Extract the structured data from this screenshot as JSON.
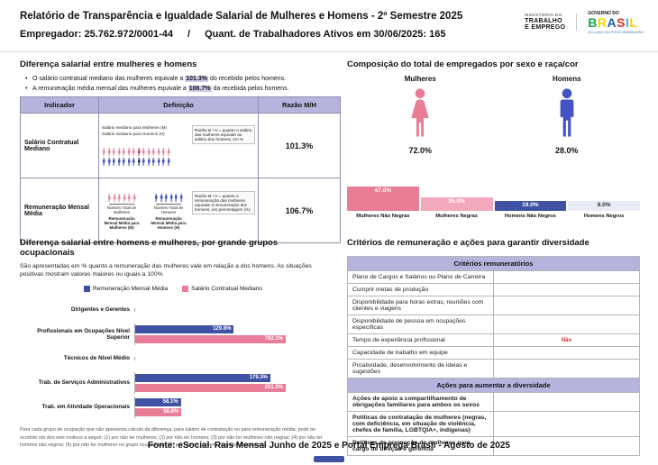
{
  "header": {
    "title": "Relatório de Transparência e Igualdade Salarial de Mulheres e Homens - 2º Semestre 2025",
    "employer": "Empregador: 25.762.972/0001-44",
    "separator": "/",
    "active_workers": "Quant. de Trabalhadores Ativos em 30/06/2025: 165",
    "ministry": {
      "line1": "MINISTÉRIO DO",
      "line2": "TRABALHO",
      "line3": "E EMPREGO"
    },
    "gov": {
      "top": "GOVERNO DO",
      "brand": "BRASIL",
      "tagline": "DO LADO DO POVO BRASILEIRO"
    }
  },
  "salary_diff": {
    "title": "Diferença salarial entre mulheres e homens",
    "bullet1": {
      "pre": "O salário contratual mediano das mulheres equivale a ",
      "value": "101.3%",
      "post": " do recebido pelos homens."
    },
    "bullet2": {
      "pre": "A remuneração média mensal das mulheres equivale a ",
      "value": "106.7%",
      "post": " da recebida pelos homens."
    },
    "table": {
      "col_indicador": "Indicador",
      "col_definicao": "Definição",
      "col_razao": "Razão M/H",
      "row1": {
        "indicator": "Salário Contratual Mediano",
        "label_a": "Salário mediano para Mulheres (M)",
        "label_b": "Salário mediano para Homens (H)",
        "note": "Razão M / H = quanto o salário das mulheres equivale ao salário dos homens, em %",
        "ratio": "101.3%"
      },
      "row2": {
        "indicator": "Remuneração Mensal Média",
        "label_a": "Número Total de Mulheres",
        "label_b": "Remuneração Mensal Média para Mulheres (M)",
        "label_c": "Número Total de Homens",
        "label_d": "Remuneração Mensal Média para Homens (H)",
        "note": "Razão M / H = quanto a remuneração das mulheres equivale à remuneração dos homens, em percentagem (%)",
        "ratio": "106.7%"
      }
    }
  },
  "composition": {
    "title": "Composição do total de empregados por sexo e raça/cor",
    "female_label": "Mulheres",
    "male_label": "Homens",
    "female_total": "72.0%",
    "male_total": "28.0%"
  },
  "occupational": {
    "title": "Diferença salarial entre homens e mulheres, por grande grupos ocupacionais",
    "subtitle": "São apresentadas em % quanto a remuneração das mulheres vale em relação a dos homens. As situações positivas mostram valores maiores ou iguais a 100%",
    "footnote": "Para cada grupo de ocupação que não apresenta cálculo da diferença, para salário de contratação ou para remuneração média, pode ter ocorrido um dos seis motivos a seguir: (1) por não ter mulheres; (2) por não ter homens; (3) por não ter mulheres não negras; (4) por não ter homens não negros; (5) por não ter mulheres no grupo ocupacional; (6) por não ter homens no grupo ocupacional."
  },
  "criteria": {
    "title": "Critérios de remuneração e ações para garantir diversidade",
    "sections": [
      {
        "header": "Critérios remuneratórios",
        "rows": [
          {
            "label": "Plano de Cargos e Salários ou Plano de Carreira"
          },
          {
            "label": "Cumprir metas de produção"
          },
          {
            "label": "Disponibilidade para horas extras, reuniões com clientes e viagens"
          },
          {
            "label": "Disponibilidade de pessoa em ocupações específicas"
          },
          {
            "label": "Tempo de experiência profissional",
            "badge": "Não"
          },
          {
            "label": "Capacidade de trabalho em equipe"
          },
          {
            "label": "Proatividade, desenvolvimento de ideias e sugestões"
          }
        ]
      },
      {
        "header": "Ações para aumentar a diversidade",
        "rows": [
          {
            "label": "Ações de apoio a compartilhamento de obrigações familiares para ambos os sexos"
          },
          {
            "label": "Políticas de contratação de mulheres (negras, com deficiência, em situação de violência, chefes de família, LGBTQIA+, indígenas)"
          },
          {
            "label": "Políticas de promoção de mulheres para cargo de direção e gerência"
          }
        ]
      }
    ]
  },
  "footer": "Fonte: eSocial. Rais Mensal Junho de 2025 e Portal Emprega Brasil - Agosto de 2025",
  "colors": {
    "pink": "#e87d96",
    "pink_light": "#f2a9bb",
    "navy": "#3f51a3",
    "navy_light": "#e9ebf7",
    "lavender": "#b4b4dc",
    "red": "#d92b2b",
    "blue_icon": "#4353c4",
    "brand_letters": [
      "#1aa84b",
      "#ffd100",
      "#1b61b3",
      "#e63027",
      "#35b6e9",
      "#ffd100"
    ]
  },
  "chart_data": [
    {
      "id": "composition",
      "type": "bar",
      "title": "Composição do total de empregados por sexo e raça/cor",
      "categories": [
        "Mulheres Não Negras",
        "Mulheres Negras",
        "Homens Não Negros",
        "Homens Negros"
      ],
      "values": [
        47.0,
        25.0,
        19.0,
        8.0
      ],
      "unit": "%",
      "colors": [
        "#e87d96",
        "#f2a9bb",
        "#3f51a3",
        "#e9ebf7"
      ],
      "label_colors": [
        "#ffffff",
        "#ffffff",
        "#ffffff",
        "#333333"
      ],
      "totals": {
        "Mulheres": 72.0,
        "Homens": 28.0
      },
      "legend_position": "none"
    },
    {
      "id": "occupational",
      "type": "bar",
      "orientation": "horizontal",
      "title": "Diferença salarial entre homens e mulheres, por grande grupos ocupacionais",
      "categories": [
        "Dirigentes e Gerentes",
        "Profissionais em Ocupações Nível Superior",
        "Técnicos de Nível Médio",
        "Trab. de Serviços Administrativos",
        "Trab. em Atividade Operacionais"
      ],
      "series": [
        {
          "name": "Remuneração Mensal Média",
          "color": "#3f51a3",
          "values": [
            null,
            129.8,
            null,
            179.3,
            58.1
          ]
        },
        {
          "name": "Salário Contratual Mediano",
          "color": "#e87d96",
          "values": [
            null,
            792.1,
            null,
            251.2,
            58.8
          ]
        }
      ],
      "unit": "%",
      "scale_max": 200,
      "legend_position": "top"
    }
  ]
}
